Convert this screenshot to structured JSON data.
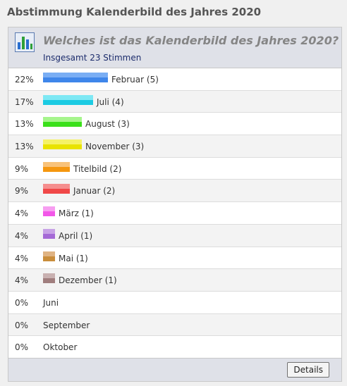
{
  "poll": {
    "title": "Abstimmung Kalenderbild des Jahres 2020",
    "question": "Welches ist das Kalenderbild des Jahres 2020?",
    "total": "Insgesamt 23 Stimmen",
    "details_label": "Details",
    "options": [
      {
        "pct": "22%",
        "label": "Februar (5)",
        "share": 0.22,
        "color_top": "#7aaef4",
        "color_bottom": "#3f86ea"
      },
      {
        "pct": "17%",
        "label": "Juli (4)",
        "share": 0.17,
        "color_top": "#7ee8f4",
        "color_bottom": "#1ccbe3"
      },
      {
        "pct": "13%",
        "label": "August (3)",
        "share": 0.13,
        "color_top": "#a6f58c",
        "color_bottom": "#3ae01a"
      },
      {
        "pct": "13%",
        "label": "November (3)",
        "share": 0.13,
        "color_top": "#f5f266",
        "color_bottom": "#e9e300"
      },
      {
        "pct": "9%",
        "label": "Titelbild (2)",
        "share": 0.09,
        "color_top": "#f8c27a",
        "color_bottom": "#f5970f"
      },
      {
        "pct": "9%",
        "label": "Januar (2)",
        "share": 0.09,
        "color_top": "#f58e8e",
        "color_bottom": "#f04848"
      },
      {
        "pct": "4%",
        "label": "März (1)",
        "share": 0.04,
        "color_top": "#f79ef1",
        "color_bottom": "#f257e8"
      },
      {
        "pct": "4%",
        "label": "April (1)",
        "share": 0.04,
        "color_top": "#c8a3e6",
        "color_bottom": "#a56ad6"
      },
      {
        "pct": "4%",
        "label": "Mai (1)",
        "share": 0.04,
        "color_top": "#dfb383",
        "color_bottom": "#c98d3b"
      },
      {
        "pct": "4%",
        "label": "Dezember (1)",
        "share": 0.04,
        "color_top": "#c9b1b1",
        "color_bottom": "#a07e7e"
      },
      {
        "pct": "0%",
        "label": "Juni",
        "share": 0,
        "color_top": "",
        "color_bottom": ""
      },
      {
        "pct": "0%",
        "label": "September",
        "share": 0,
        "color_top": "",
        "color_bottom": ""
      },
      {
        "pct": "0%",
        "label": "Oktober",
        "share": 0,
        "color_top": "",
        "color_bottom": ""
      }
    ]
  }
}
